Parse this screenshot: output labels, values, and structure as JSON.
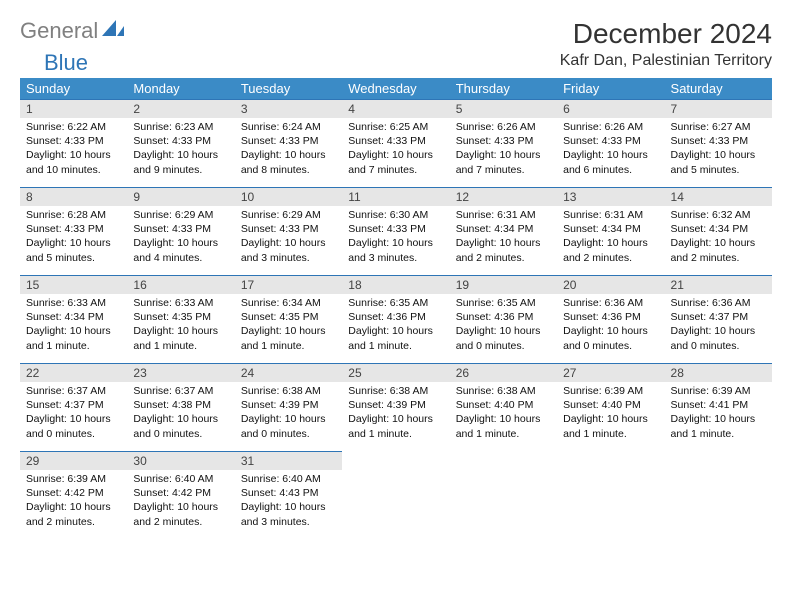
{
  "logo": {
    "gray": "General",
    "blue": "Blue"
  },
  "title": "December 2024",
  "location": "Kafr Dan, Palestinian Territory",
  "colors": {
    "header_bg": "#3b8bc6",
    "header_fg": "#ffffff",
    "daynum_bg": "#e6e6e6",
    "rule": "#2e75b6",
    "logo_gray": "#808080",
    "logo_blue": "#2e75b6"
  },
  "weekdays": [
    "Sunday",
    "Monday",
    "Tuesday",
    "Wednesday",
    "Thursday",
    "Friday",
    "Saturday"
  ],
  "days": [
    {
      "n": 1,
      "sr": "6:22 AM",
      "ss": "4:33 PM",
      "dl": "10 hours and 10 minutes."
    },
    {
      "n": 2,
      "sr": "6:23 AM",
      "ss": "4:33 PM",
      "dl": "10 hours and 9 minutes."
    },
    {
      "n": 3,
      "sr": "6:24 AM",
      "ss": "4:33 PM",
      "dl": "10 hours and 8 minutes."
    },
    {
      "n": 4,
      "sr": "6:25 AM",
      "ss": "4:33 PM",
      "dl": "10 hours and 7 minutes."
    },
    {
      "n": 5,
      "sr": "6:26 AM",
      "ss": "4:33 PM",
      "dl": "10 hours and 7 minutes."
    },
    {
      "n": 6,
      "sr": "6:26 AM",
      "ss": "4:33 PM",
      "dl": "10 hours and 6 minutes."
    },
    {
      "n": 7,
      "sr": "6:27 AM",
      "ss": "4:33 PM",
      "dl": "10 hours and 5 minutes."
    },
    {
      "n": 8,
      "sr": "6:28 AM",
      "ss": "4:33 PM",
      "dl": "10 hours and 5 minutes."
    },
    {
      "n": 9,
      "sr": "6:29 AM",
      "ss": "4:33 PM",
      "dl": "10 hours and 4 minutes."
    },
    {
      "n": 10,
      "sr": "6:29 AM",
      "ss": "4:33 PM",
      "dl": "10 hours and 3 minutes."
    },
    {
      "n": 11,
      "sr": "6:30 AM",
      "ss": "4:33 PM",
      "dl": "10 hours and 3 minutes."
    },
    {
      "n": 12,
      "sr": "6:31 AM",
      "ss": "4:34 PM",
      "dl": "10 hours and 2 minutes."
    },
    {
      "n": 13,
      "sr": "6:31 AM",
      "ss": "4:34 PM",
      "dl": "10 hours and 2 minutes."
    },
    {
      "n": 14,
      "sr": "6:32 AM",
      "ss": "4:34 PM",
      "dl": "10 hours and 2 minutes."
    },
    {
      "n": 15,
      "sr": "6:33 AM",
      "ss": "4:34 PM",
      "dl": "10 hours and 1 minute."
    },
    {
      "n": 16,
      "sr": "6:33 AM",
      "ss": "4:35 PM",
      "dl": "10 hours and 1 minute."
    },
    {
      "n": 17,
      "sr": "6:34 AM",
      "ss": "4:35 PM",
      "dl": "10 hours and 1 minute."
    },
    {
      "n": 18,
      "sr": "6:35 AM",
      "ss": "4:36 PM",
      "dl": "10 hours and 1 minute."
    },
    {
      "n": 19,
      "sr": "6:35 AM",
      "ss": "4:36 PM",
      "dl": "10 hours and 0 minutes."
    },
    {
      "n": 20,
      "sr": "6:36 AM",
      "ss": "4:36 PM",
      "dl": "10 hours and 0 minutes."
    },
    {
      "n": 21,
      "sr": "6:36 AM",
      "ss": "4:37 PM",
      "dl": "10 hours and 0 minutes."
    },
    {
      "n": 22,
      "sr": "6:37 AM",
      "ss": "4:37 PM",
      "dl": "10 hours and 0 minutes."
    },
    {
      "n": 23,
      "sr": "6:37 AM",
      "ss": "4:38 PM",
      "dl": "10 hours and 0 minutes."
    },
    {
      "n": 24,
      "sr": "6:38 AM",
      "ss": "4:39 PM",
      "dl": "10 hours and 0 minutes."
    },
    {
      "n": 25,
      "sr": "6:38 AM",
      "ss": "4:39 PM",
      "dl": "10 hours and 1 minute."
    },
    {
      "n": 26,
      "sr": "6:38 AM",
      "ss": "4:40 PM",
      "dl": "10 hours and 1 minute."
    },
    {
      "n": 27,
      "sr": "6:39 AM",
      "ss": "4:40 PM",
      "dl": "10 hours and 1 minute."
    },
    {
      "n": 28,
      "sr": "6:39 AM",
      "ss": "4:41 PM",
      "dl": "10 hours and 1 minute."
    },
    {
      "n": 29,
      "sr": "6:39 AM",
      "ss": "4:42 PM",
      "dl": "10 hours and 2 minutes."
    },
    {
      "n": 30,
      "sr": "6:40 AM",
      "ss": "4:42 PM",
      "dl": "10 hours and 2 minutes."
    },
    {
      "n": 31,
      "sr": "6:40 AM",
      "ss": "4:43 PM",
      "dl": "10 hours and 3 minutes."
    }
  ],
  "labels": {
    "sunrise": "Sunrise:",
    "sunset": "Sunset:",
    "daylight": "Daylight:"
  }
}
